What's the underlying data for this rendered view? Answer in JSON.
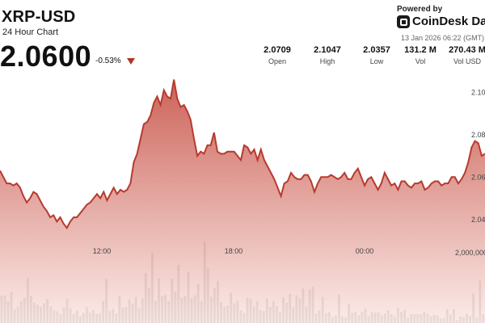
{
  "header": {
    "title": "XRP-USD",
    "subtitle": "24 Hour Chart",
    "price": "2.0600",
    "change": "-0.53%",
    "powered_by": "Powered by",
    "brand": "CoinDesk Data",
    "timestamp": "13 Jan 2026 06:22 (GMT)"
  },
  "stats": [
    {
      "value": "2.0709",
      "label": "Open"
    },
    {
      "value": "2.1047",
      "label": "High"
    },
    {
      "value": "2.0357",
      "label": "Low"
    },
    {
      "value": "131.2 M",
      "label": "Vol"
    },
    {
      "value": "270.43 M",
      "label": "Vol USD"
    }
  ],
  "colors": {
    "line": "#b73a2f",
    "area_top": "#c95a4f",
    "area_bottom": "#fbe9e6",
    "volume": "#555555",
    "arrow": "#b0352a"
  },
  "chart_data": {
    "type": "area",
    "x_ticks": [
      "12:00",
      "18:00",
      "00:00"
    ],
    "y_ticks": [
      "2.10",
      "2.08",
      "2.06",
      "2.04"
    ],
    "ylim": [
      2.03,
      2.11
    ],
    "volume_tick": "2,000,000",
    "volume_max": 3500000,
    "price": [
      2.063,
      2.06,
      2.057,
      2.057,
      2.056,
      2.057,
      2.055,
      2.051,
      2.048,
      2.05,
      2.053,
      2.052,
      2.049,
      2.046,
      2.044,
      2.041,
      2.042,
      2.039,
      2.041,
      2.038,
      2.036,
      2.039,
      2.041,
      2.041,
      2.043,
      2.045,
      2.047,
      2.048,
      2.05,
      2.052,
      2.05,
      2.053,
      2.049,
      2.052,
      2.055,
      2.052,
      2.054,
      2.053,
      2.054,
      2.057,
      2.067,
      2.071,
      2.078,
      2.085,
      2.086,
      2.089,
      2.095,
      2.098,
      2.094,
      2.101,
      2.098,
      2.097,
      2.106,
      2.097,
      2.093,
      2.094,
      2.091,
      2.087,
      2.078,
      2.07,
      2.072,
      2.071,
      2.075,
      2.075,
      2.081,
      2.072,
      2.071,
      2.071,
      2.072,
      2.072,
      2.072,
      2.07,
      2.068,
      2.075,
      2.074,
      2.071,
      2.073,
      2.068,
      2.073,
      2.068,
      2.065,
      2.062,
      2.059,
      2.055,
      2.051,
      2.057,
      2.058,
      2.062,
      2.06,
      2.059,
      2.059,
      2.061,
      2.061,
      2.058,
      2.053,
      2.057,
      2.06,
      2.06,
      2.06,
      2.061,
      2.06,
      2.059,
      2.06,
      2.062,
      2.059,
      2.059,
      2.062,
      2.064,
      2.06,
      2.056,
      2.059,
      2.06,
      2.057,
      2.054,
      2.057,
      2.062,
      2.059,
      2.056,
      2.057,
      2.054,
      2.058,
      2.058,
      2.056,
      2.055,
      2.057,
      2.057,
      2.058,
      2.054,
      2.055,
      2.057,
      2.058,
      2.058,
      2.056,
      2.057,
      2.057,
      2.06,
      2.06,
      2.057,
      2.059,
      2.062,
      2.067,
      2.074,
      2.077,
      2.076,
      2.07,
      2.071
    ],
    "volume": [
      1250000,
      1250000,
      1000000,
      1400000,
      620000,
      760000,
      1000000,
      1150000,
      2050000,
      1250000,
      920000,
      840000,
      740000,
      900000,
      1080000,
      760000,
      580000,
      530000,
      410000,
      720000,
      1100000,
      680000,
      400000,
      560000,
      310000,
      460000,
      720000,
      470000,
      600000,
      420000,
      440000,
      1000000,
      2000000,
      560000,
      640000,
      430000,
      1250000,
      700000,
      720000,
      1060000,
      880000,
      1190000,
      670000,
      1120000,
      2270000,
      1620000,
      3200000,
      1020000,
      2040000,
      1230000,
      1280000,
      990000,
      2020000,
      1440000,
      2650000,
      1150000,
      1250000,
      2340000,
      1140000,
      1270000,
      1800000,
      990000,
      3700000,
      2480000,
      1200000,
      1600000,
      1900000,
      960000,
      740000,
      800000,
      1380000,
      900000,
      1000000,
      590000,
      460000,
      1150000,
      1100000,
      750000,
      1000000,
      590000,
      550000,
      1120000,
      730000,
      1000000,
      760000,
      500000,
      1160000,
      920000,
      1330000,
      720000,
      1260000,
      1140000,
      1580000,
      730000,
      1530000,
      1650000,
      430000,
      570000,
      1190000,
      440000,
      500000,
      250000,
      350000,
      1290000,
      300000,
      260000,
      870000,
      460000,
      520000,
      350000,
      510000,
      650000,
      310000,
      500000,
      480000,
      480000,
      350000,
      440000,
      590000,
      400000,
      300000,
      690000,
      510000,
      600000,
      230000,
      400000,
      400000,
      410000,
      390000,
      520000,
      420000,
      290000,
      380000,
      340000,
      210000,
      200000,
      640000,
      390000,
      630000,
      120000,
      300000,
      260000,
      420000,
      330000,
      1340000,
      240000,
      1930000,
      400000
    ]
  }
}
